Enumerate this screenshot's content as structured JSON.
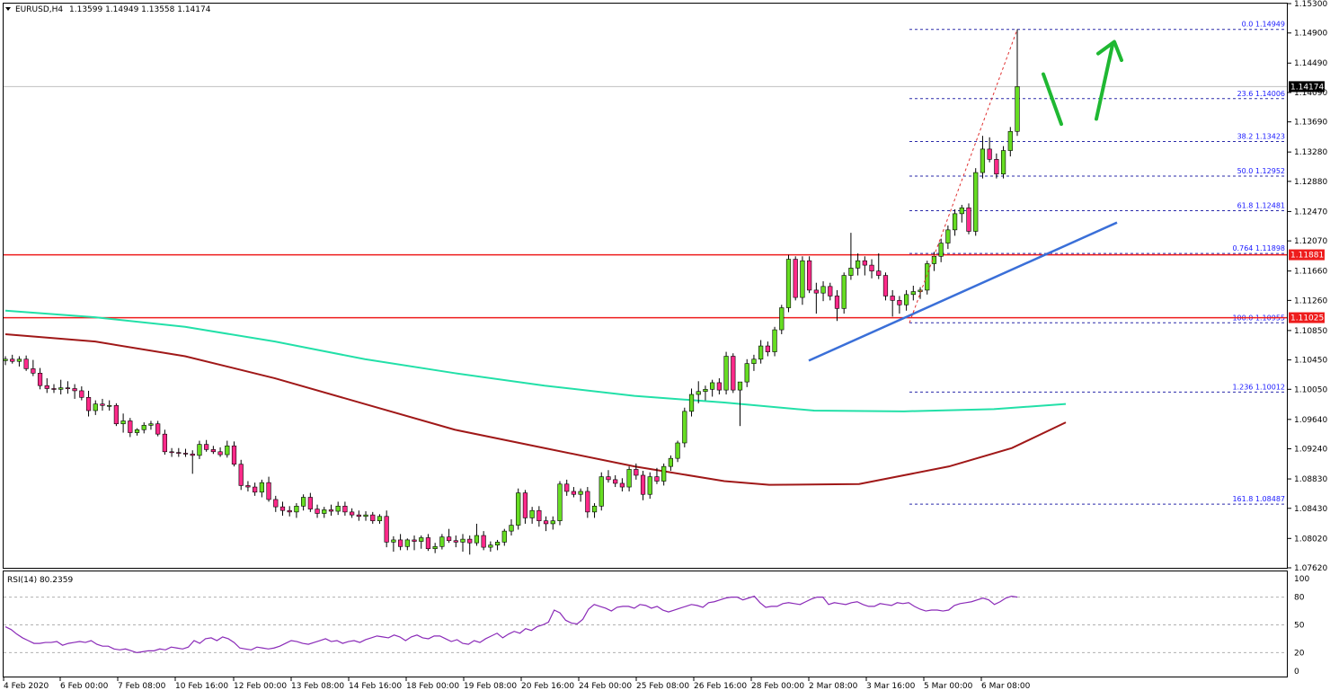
{
  "header": {
    "symbol": "EURUSD,H4",
    "ohlc": "1.13599 1.14949 1.13558 1.14174"
  },
  "rsi": {
    "label": "RSI(14) 80.2359",
    "levels": [
      "100",
      "80",
      "50",
      "20",
      "0"
    ]
  },
  "current_price_badge": "1.14174",
  "chart_data": {
    "type": "candlestick",
    "title": "EURUSD,H4",
    "ylim": [
      1.0762,
      1.153
    ],
    "y_ticks": [
      "1.15300",
      "1.14900",
      "1.14490",
      "1.14090",
      "1.13690",
      "1.13280",
      "1.12880",
      "1.12470",
      "1.12070",
      "1.11660",
      "1.11260",
      "1.10850",
      "1.10450",
      "1.10050",
      "1.09640",
      "1.09240",
      "1.08830",
      "1.08430",
      "1.08020",
      "1.07620"
    ],
    "x_ticks": [
      "4 Feb 2020",
      "6 Feb 00:00",
      "7 Feb 08:00",
      "10 Feb 16:00",
      "12 Feb 00:00",
      "13 Feb 08:00",
      "14 Feb 16:00",
      "18 Feb 00:00",
      "19 Feb 08:00",
      "20 Feb 16:00",
      "24 Feb 00:00",
      "25 Feb 08:00",
      "26 Feb 16:00",
      "28 Feb 00:00",
      "2 Mar 08:00",
      "3 Mar 16:00",
      "5 Mar 00:00",
      "6 Mar 08:00"
    ],
    "colors": {
      "bull": "#66dd22",
      "bear": "#ff2a8a",
      "ema_fast": "#22e0a8",
      "ema_slow": "#a01818",
      "support_lines": "#ee1c1c",
      "trendline": "#3a6fd8",
      "fib": "#2a2aaa",
      "arrows": "#1fb832"
    },
    "fibonacci": [
      {
        "label": "0.0 1.14949",
        "price": 1.14949
      },
      {
        "label": "23.6 1.14006",
        "price": 1.14006
      },
      {
        "label": "38.2 1.13423",
        "price": 1.13423
      },
      {
        "label": "50.0 1.12952",
        "price": 1.12952
      },
      {
        "label": "61.8 1.12481",
        "price": 1.12481
      },
      {
        "label": "0.764 1.11898",
        "price": 1.11898
      },
      {
        "label": "100.0 1.10955",
        "price": 1.10955
      },
      {
        "label": "1.236 1.10012",
        "price": 1.10012
      },
      {
        "label": "161.8 1.08487",
        "price": 1.08487
      }
    ],
    "horizontal_levels": [
      {
        "label": "1.11881",
        "price": 1.11881
      },
      {
        "label": "1.11025",
        "price": 1.11025
      }
    ],
    "candles": [
      [
        1.1044,
        1.105,
        1.1038,
        1.1046
      ],
      [
        1.1046,
        1.1052,
        1.104,
        1.1043
      ],
      [
        1.1043,
        1.105,
        1.1036,
        1.1046
      ],
      [
        1.1046,
        1.1051,
        1.103,
        1.1033
      ],
      [
        1.1033,
        1.1045,
        1.1023,
        1.1027
      ],
      [
        1.1027,
        1.1034,
        1.1005,
        1.101
      ],
      [
        1.101,
        1.102,
        1.1,
        1.1006
      ],
      [
        1.1006,
        1.1012,
        1.1,
        1.1005
      ],
      [
        1.1005,
        1.1018,
        1.0998,
        1.1007
      ],
      [
        1.1007,
        1.1016,
        1.0999,
        1.1006
      ],
      [
        1.1006,
        1.1012,
        1.0992,
        1.1003
      ],
      [
        1.1003,
        1.1009,
        1.099,
        1.0994
      ],
      [
        1.0994,
        1.1003,
        1.0968,
        1.0976
      ],
      [
        1.0976,
        1.099,
        1.097,
        1.0985
      ],
      [
        1.0985,
        1.0992,
        1.0976,
        1.0983
      ],
      [
        1.0983,
        1.099,
        1.0976,
        1.0983
      ],
      [
        1.0983,
        1.0986,
        1.0955,
        1.0958
      ],
      [
        1.0958,
        1.0972,
        1.0946,
        1.0962
      ],
      [
        1.0962,
        1.0966,
        1.094,
        1.0946
      ],
      [
        1.0946,
        1.0952,
        1.0942,
        1.095
      ],
      [
        1.095,
        1.096,
        1.0945,
        1.0956
      ],
      [
        1.0956,
        1.0962,
        1.095,
        1.0958
      ],
      [
        1.0958,
        1.0962,
        1.0941,
        1.0944
      ],
      [
        1.0944,
        1.095,
        1.0916,
        1.092
      ],
      [
        1.092,
        1.0925,
        1.0913,
        1.0919
      ],
      [
        1.0919,
        1.0925,
        1.0913,
        1.0918
      ],
      [
        1.0918,
        1.0924,
        1.0913,
        1.0917
      ],
      [
        1.0917,
        1.0922,
        1.089,
        1.0915
      ],
      [
        1.0915,
        1.0935,
        1.091,
        1.093
      ],
      [
        1.093,
        1.0936,
        1.092,
        1.0923
      ],
      [
        1.0923,
        1.0928,
        1.0917,
        1.092
      ],
      [
        1.092,
        1.0926,
        1.0913,
        1.0916
      ],
      [
        1.0916,
        1.0935,
        1.0912,
        1.0928
      ],
      [
        1.0928,
        1.0934,
        1.09,
        1.0903
      ],
      [
        1.0903,
        1.0909,
        1.0868,
        1.0874
      ],
      [
        1.0874,
        1.088,
        1.0866,
        1.0872
      ],
      [
        1.0872,
        1.0878,
        1.086,
        1.0865
      ],
      [
        1.0865,
        1.0882,
        1.0858,
        1.0878
      ],
      [
        1.0878,
        1.0886,
        1.0852,
        1.0855
      ],
      [
        1.0855,
        1.086,
        1.0838,
        1.0845
      ],
      [
        1.0845,
        1.0852,
        1.0833,
        1.084
      ],
      [
        1.084,
        1.0846,
        1.0832,
        1.0838
      ],
      [
        1.0838,
        1.085,
        1.083,
        1.0846
      ],
      [
        1.0846,
        1.0862,
        1.084,
        1.0858
      ],
      [
        1.0858,
        1.0864,
        1.0838,
        1.0842
      ],
      [
        1.0842,
        1.0848,
        1.083,
        1.0836
      ],
      [
        1.0836,
        1.0845,
        1.083,
        1.0841
      ],
      [
        1.0841,
        1.0848,
        1.0833,
        1.0839
      ],
      [
        1.0839,
        1.0852,
        1.0834,
        1.0846
      ],
      [
        1.0846,
        1.0852,
        1.0833,
        1.0838
      ],
      [
        1.0838,
        1.0843,
        1.083,
        1.0834
      ],
      [
        1.0834,
        1.084,
        1.0826,
        1.0832
      ],
      [
        1.0832,
        1.0839,
        1.0826,
        1.0834
      ],
      [
        1.0834,
        1.0838,
        1.0822,
        1.0826
      ],
      [
        1.0826,
        1.0835,
        1.0822,
        1.0832
      ],
      [
        1.0832,
        1.084,
        1.079,
        1.0797
      ],
      [
        1.0797,
        1.0805,
        1.0784,
        1.08
      ],
      [
        1.08,
        1.0808,
        1.0786,
        1.0791
      ],
      [
        1.0791,
        1.0802,
        1.0786,
        1.08
      ],
      [
        1.08,
        1.0806,
        1.0786,
        1.0798
      ],
      [
        1.0798,
        1.0806,
        1.0788,
        1.0803
      ],
      [
        1.0803,
        1.0808,
        1.0785,
        1.0788
      ],
      [
        1.0788,
        1.0796,
        1.0782,
        1.0791
      ],
      [
        1.0791,
        1.0808,
        1.0787,
        1.0804
      ],
      [
        1.0804,
        1.0815,
        1.0796,
        1.0799
      ],
      [
        1.0799,
        1.0806,
        1.079,
        1.0797
      ],
      [
        1.0797,
        1.0808,
        1.0784,
        1.0801
      ],
      [
        1.0801,
        1.0806,
        1.078,
        1.0796
      ],
      [
        1.0796,
        1.0822,
        1.0792,
        1.0806
      ],
      [
        1.0806,
        1.0812,
        1.0786,
        1.079
      ],
      [
        1.079,
        1.0798,
        1.0784,
        1.0793
      ],
      [
        1.0793,
        1.08,
        1.0786,
        1.0797
      ],
      [
        1.0797,
        1.0815,
        1.0792,
        1.0812
      ],
      [
        1.0812,
        1.0828,
        1.0806,
        1.082
      ],
      [
        1.082,
        1.087,
        1.0814,
        1.0864
      ],
      [
        1.0864,
        1.0868,
        1.0822,
        1.083
      ],
      [
        1.083,
        1.0845,
        1.0822,
        1.084
      ],
      [
        1.084,
        1.0846,
        1.0818,
        1.0826
      ],
      [
        1.0826,
        1.0832,
        1.0812,
        1.0822
      ],
      [
        1.0822,
        1.0832,
        1.0814,
        1.0826
      ],
      [
        1.0826,
        1.088,
        1.082,
        1.0876
      ],
      [
        1.0876,
        1.0882,
        1.086,
        1.0866
      ],
      [
        1.0866,
        1.0872,
        1.0858,
        1.0862
      ],
      [
        1.0862,
        1.087,
        1.0852,
        1.0866
      ],
      [
        1.0866,
        1.0872,
        1.083,
        1.0838
      ],
      [
        1.0838,
        1.085,
        1.083,
        1.0846
      ],
      [
        1.0846,
        1.0892,
        1.084,
        1.0886
      ],
      [
        1.0886,
        1.0895,
        1.0878,
        1.0882
      ],
      [
        1.0882,
        1.0888,
        1.0872,
        1.0877
      ],
      [
        1.0877,
        1.0884,
        1.0866,
        1.0872
      ],
      [
        1.0872,
        1.09,
        1.0866,
        1.0896
      ],
      [
        1.0896,
        1.0904,
        1.0882,
        1.0888
      ],
      [
        1.0888,
        1.0894,
        1.0854,
        1.0862
      ],
      [
        1.0862,
        1.0892,
        1.0856,
        1.0886
      ],
      [
        1.0886,
        1.0898,
        1.0876,
        1.088
      ],
      [
        1.088,
        1.0904,
        1.0874,
        1.09
      ],
      [
        1.09,
        1.0915,
        1.0894,
        1.0911
      ],
      [
        1.0911,
        1.0935,
        1.0906,
        1.0932
      ],
      [
        1.0932,
        1.098,
        1.0926,
        1.0975
      ],
      [
        1.0975,
        1.1006,
        1.0968,
        1.0998
      ],
      [
        1.0998,
        1.1016,
        1.0986,
        1.1002
      ],
      [
        1.1002,
        1.101,
        1.099,
        1.1005
      ],
      [
        1.1005,
        1.1018,
        1.0995,
        1.1014
      ],
      [
        1.1014,
        1.102,
        1.0998,
        1.1004
      ],
      [
        1.1004,
        1.1056,
        1.0998,
        1.105
      ],
      [
        1.105,
        1.1054,
        1.1,
        1.1004
      ],
      [
        1.1004,
        1.101,
        1.0955,
        1.1015
      ],
      [
        1.1015,
        1.1046,
        1.1008,
        1.104
      ],
      [
        1.104,
        1.1052,
        1.103,
        1.1046
      ],
      [
        1.1046,
        1.1072,
        1.104,
        1.1064
      ],
      [
        1.1064,
        1.107,
        1.105,
        1.1056
      ],
      [
        1.1056,
        1.109,
        1.105,
        1.1086
      ],
      [
        1.1086,
        1.112,
        1.108,
        1.1116
      ],
      [
        1.1116,
        1.1188,
        1.111,
        1.1182
      ],
      [
        1.1182,
        1.1186,
        1.1126,
        1.113
      ],
      [
        1.113,
        1.1186,
        1.112,
        1.118
      ],
      [
        1.118,
        1.1186,
        1.1136,
        1.114
      ],
      [
        1.114,
        1.115,
        1.1108,
        1.1136
      ],
      [
        1.1136,
        1.1152,
        1.1125,
        1.1145
      ],
      [
        1.1145,
        1.115,
        1.1126,
        1.1132
      ],
      [
        1.1132,
        1.114,
        1.1098,
        1.1115
      ],
      [
        1.1115,
        1.1164,
        1.1108,
        1.116
      ],
      [
        1.116,
        1.1218,
        1.1154,
        1.117
      ],
      [
        1.117,
        1.119,
        1.116,
        1.118
      ],
      [
        1.118,
        1.1186,
        1.116,
        1.1174
      ],
      [
        1.1174,
        1.1182,
        1.1156,
        1.1166
      ],
      [
        1.1166,
        1.119,
        1.1155,
        1.116
      ],
      [
        1.116,
        1.1164,
        1.1126,
        1.1132
      ],
      [
        1.1132,
        1.114,
        1.1104,
        1.1126
      ],
      [
        1.1126,
        1.1132,
        1.1108,
        1.112
      ],
      [
        1.112,
        1.114,
        1.1112,
        1.1134
      ],
      [
        1.1134,
        1.1146,
        1.1126,
        1.1138
      ],
      [
        1.1138,
        1.1144,
        1.1128,
        1.114
      ],
      [
        1.114,
        1.118,
        1.1134,
        1.1176
      ],
      [
        1.1176,
        1.1192,
        1.1166,
        1.1186
      ],
      [
        1.1186,
        1.121,
        1.1178,
        1.1204
      ],
      [
        1.1204,
        1.1228,
        1.1196,
        1.1222
      ],
      [
        1.1222,
        1.125,
        1.1214,
        1.1244
      ],
      [
        1.1244,
        1.1256,
        1.1232,
        1.1252
      ],
      [
        1.1252,
        1.1258,
        1.1216,
        1.122
      ],
      [
        1.122,
        1.1306,
        1.1214,
        1.13
      ],
      [
        1.13,
        1.135,
        1.1292,
        1.1332
      ],
      [
        1.1332,
        1.1348,
        1.1314,
        1.1318
      ],
      [
        1.1318,
        1.1326,
        1.1292,
        1.1298
      ],
      [
        1.1298,
        1.1336,
        1.1292,
        1.133
      ],
      [
        1.133,
        1.1362,
        1.1322,
        1.1356
      ],
      [
        1.1356,
        1.1495,
        1.135,
        1.1417
      ]
    ],
    "ema_fast": [
      [
        0,
        1.1112
      ],
      [
        100,
        1.1103
      ],
      [
        200,
        1.109
      ],
      [
        300,
        1.107
      ],
      [
        400,
        1.1046
      ],
      [
        500,
        1.1027
      ],
      [
        600,
        1.101
      ],
      [
        700,
        1.0996
      ],
      [
        800,
        1.0987
      ],
      [
        900,
        1.0976
      ],
      [
        1000,
        1.0975
      ],
      [
        1100,
        1.0978
      ],
      [
        1180,
        1.0985
      ]
    ],
    "ema_slow": [
      [
        0,
        1.108
      ],
      [
        100,
        1.107
      ],
      [
        200,
        1.105
      ],
      [
        300,
        1.102
      ],
      [
        400,
        1.0985
      ],
      [
        500,
        1.095
      ],
      [
        600,
        1.0925
      ],
      [
        700,
        1.09
      ],
      [
        800,
        1.088
      ],
      [
        850,
        1.0875
      ],
      [
        950,
        1.0876
      ],
      [
        1050,
        1.09
      ],
      [
        1120,
        1.0925
      ],
      [
        1180,
        1.096
      ]
    ],
    "rsi_values": [
      48,
      45,
      40,
      36,
      33,
      30,
      30,
      31,
      31,
      32,
      28,
      30,
      31,
      32,
      31,
      33,
      29,
      27,
      27,
      24,
      23,
      24,
      22,
      20,
      21,
      22,
      22,
      24,
      23,
      26,
      25,
      24,
      26,
      33,
      30,
      35,
      36,
      33,
      37,
      35,
      31,
      25,
      24,
      23,
      26,
      25,
      24,
      25,
      27,
      30,
      33,
      32,
      30,
      29,
      31,
      33,
      35,
      32,
      33,
      30,
      32,
      33,
      31,
      34,
      36,
      38,
      37,
      36,
      39,
      37,
      33,
      37,
      39,
      36,
      35,
      38,
      38,
      35,
      32,
      34,
      30,
      29,
      33,
      31,
      35,
      38,
      41,
      36,
      40,
      43,
      41,
      46,
      44,
      48,
      50,
      53,
      66,
      63,
      55,
      52,
      51,
      56,
      67,
      72,
      70,
      68,
      65,
      69,
      70,
      70,
      68,
      72,
      71,
      68,
      70,
      66,
      64,
      66,
      68,
      70,
      72,
      71,
      69,
      74,
      75,
      77,
      79,
      80,
      80,
      77,
      79,
      81,
      74,
      69,
      70,
      70,
      73,
      74,
      73,
      72,
      75,
      78,
      80,
      80,
      72,
      74,
      73,
      72,
      74,
      75,
      72,
      70,
      70,
      73,
      72,
      71,
      74,
      73,
      74,
      70,
      67,
      65,
      66,
      66,
      65,
      66,
      71,
      73,
      74,
      75,
      77,
      79,
      77,
      72,
      75,
      79,
      81,
      80
    ]
  }
}
